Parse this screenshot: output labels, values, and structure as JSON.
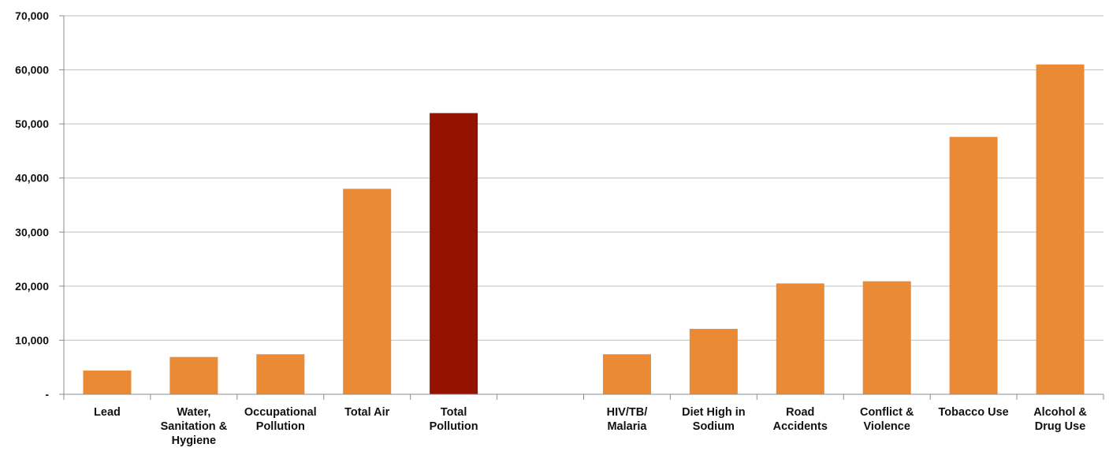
{
  "chart_data": {
    "type": "bar",
    "categories": [
      [
        "Lead"
      ],
      [
        "Water,",
        "Sanitation &",
        "Hygiene"
      ],
      [
        "Occupational",
        "Pollution"
      ],
      [
        "Total Air"
      ],
      [
        "Total",
        "Pollution"
      ],
      [
        ""
      ],
      [
        "HIV/TB/",
        "Malaria"
      ],
      [
        "Diet High in",
        "Sodium"
      ],
      [
        "Road",
        "Accidents"
      ],
      [
        "Conflict &",
        "Violence"
      ],
      [
        "Tobacco Use"
      ],
      [
        "Alcohol &",
        "Drug Use"
      ]
    ],
    "values": [
      4400,
      6900,
      7400,
      38000,
      52000,
      null,
      7400,
      12100,
      20500,
      20900,
      47600,
      61000
    ],
    "yticks": [
      "-",
      "10,000",
      "20,000",
      "30,000",
      "40,000",
      "50,000",
      "60,000",
      "70,000"
    ],
    "ylim": [
      0,
      70000
    ],
    "grid": true,
    "colors": {
      "default": "#EB8A35",
      "highlight": "#941200",
      "highlight_index": 4,
      "grid": "#BFBFBF",
      "axis": "#8C8C8C"
    }
  }
}
